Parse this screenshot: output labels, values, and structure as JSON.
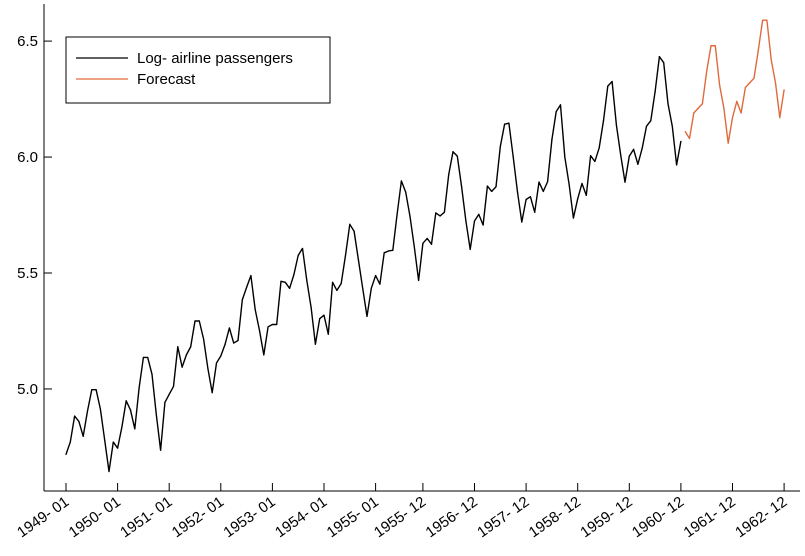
{
  "chart_data": {
    "type": "line",
    "title": "",
    "xlabel": "",
    "ylabel": "",
    "x_tick_labels": [
      "1949- 01",
      "1950- 01",
      "1951- 01",
      "1952- 01",
      "1953- 01",
      "1954- 01",
      "1955- 01",
      "1955- 12",
      "1956- 12",
      "1957- 12",
      "1958- 12",
      "1959- 12",
      "1960- 12",
      "1961- 12",
      "1962- 12"
    ],
    "y_ticks": [
      5.0,
      5.5,
      6.0,
      6.5
    ],
    "y_tick_labels": [
      "5.0",
      "5.5",
      "6.0",
      "6.5"
    ],
    "ylim": [
      4.56,
      6.66
    ],
    "grid": false,
    "legend_position": "top-left",
    "series": [
      {
        "name": "Log- airline passengers",
        "color": "#000000",
        "x_start": "1949-01",
        "values": [
          4.718,
          4.771,
          4.883,
          4.86,
          4.796,
          4.905,
          4.997,
          4.997,
          4.913,
          4.779,
          4.644,
          4.771,
          4.745,
          4.836,
          4.949,
          4.909,
          4.828,
          5.004,
          5.136,
          5.136,
          5.063,
          4.89,
          4.736,
          4.942,
          4.977,
          5.011,
          5.182,
          5.094,
          5.147,
          5.182,
          5.293,
          5.293,
          5.215,
          5.088,
          4.984,
          5.112,
          5.142,
          5.193,
          5.263,
          5.198,
          5.209,
          5.384,
          5.438,
          5.489,
          5.342,
          5.252,
          5.147,
          5.268,
          5.278,
          5.278,
          5.464,
          5.46,
          5.434,
          5.493,
          5.576,
          5.606,
          5.468,
          5.352,
          5.193,
          5.303,
          5.318,
          5.236,
          5.46,
          5.425,
          5.455,
          5.576,
          5.71,
          5.68,
          5.557,
          5.434,
          5.313,
          5.434,
          5.489,
          5.452,
          5.587,
          5.595,
          5.598,
          5.753,
          5.897,
          5.849,
          5.744,
          5.613,
          5.468,
          5.628,
          5.649,
          5.624,
          5.759,
          5.746,
          5.762,
          5.924,
          6.023,
          6.004,
          5.872,
          5.724,
          5.602,
          5.724,
          5.753,
          5.707,
          5.875,
          5.852,
          5.872,
          6.045,
          6.142,
          6.146,
          6.001,
          5.849,
          5.72,
          5.817,
          5.829,
          5.762,
          5.892,
          5.852,
          5.894,
          6.075,
          6.196,
          6.225,
          6.001,
          5.883,
          5.737,
          5.82,
          5.886,
          5.835,
          6.006,
          5.981,
          6.04,
          6.157,
          6.306,
          6.326,
          6.138,
          6.009,
          5.892,
          6.004,
          6.033,
          5.969,
          6.038,
          6.133,
          6.157,
          6.282,
          6.433,
          6.407,
          6.23,
          6.133,
          5.966,
          6.068
        ]
      },
      {
        "name": "Forecast",
        "color": "#e06a3c",
        "x_start": "1961-01",
        "values": [
          6.11,
          6.08,
          6.19,
          6.21,
          6.23,
          6.37,
          6.48,
          6.48,
          6.31,
          6.21,
          6.06,
          6.17,
          6.24,
          6.19,
          6.3,
          6.32,
          6.34,
          6.46,
          6.59,
          6.59,
          6.42,
          6.32,
          6.17,
          6.29
        ]
      }
    ]
  }
}
